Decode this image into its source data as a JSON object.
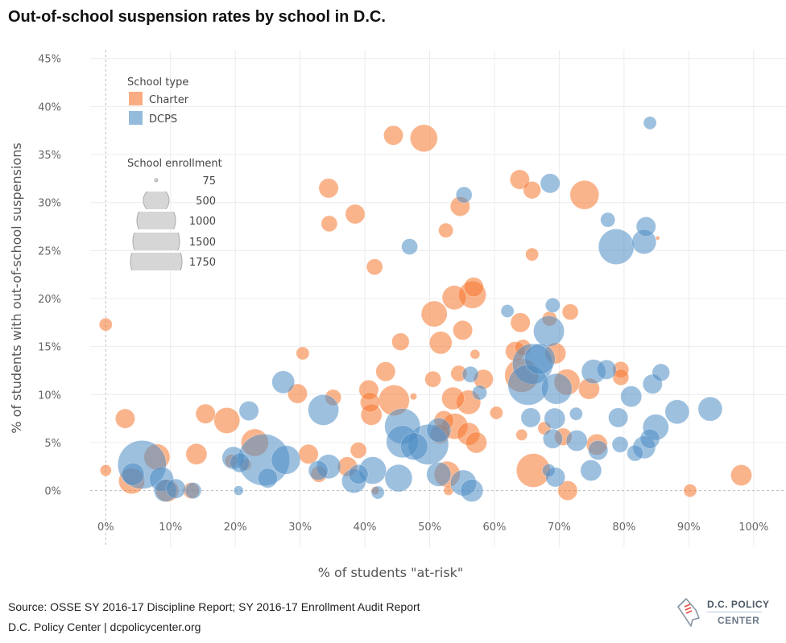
{
  "title": "Out-of-school suspension rates by school in D.C.",
  "footer": {
    "source": "Source: OSSE SY 2016-17 Discipline Report; SY 2016-17 Enrollment Audit Report",
    "credit": "D.C. Policy Center  |  dcpolicycenter.org",
    "logo_line1": "D.C. POLICY",
    "logo_line2": "CENTER"
  },
  "chart_data": {
    "type": "scatter",
    "variant": "bubble",
    "xlabel": "% of students \"at-risk\"",
    "ylabel": "% of students with out-of-school suspensions",
    "xlim": [
      -2.4,
      105
    ],
    "ylim": [
      -5.9,
      45.9
    ],
    "xticks": [
      0,
      10,
      20,
      30,
      40,
      50,
      60,
      70,
      80,
      90,
      100
    ],
    "yticks": [
      0,
      5,
      10,
      15,
      20,
      25,
      30,
      35,
      40,
      45
    ],
    "xtick_labels": [
      "0%",
      "10%",
      "20%",
      "30%",
      "40%",
      "50%",
      "60%",
      "70%",
      "80%",
      "90%",
      "100%"
    ],
    "ytick_labels": [
      "0%",
      "5%",
      "10%",
      "15%",
      "20%",
      "25%",
      "30%",
      "35%",
      "40%",
      "45%"
    ],
    "grid": true,
    "legend": {
      "placement": "top-left",
      "color_title": "School type",
      "size_title": "School enrollment",
      "size_values": [
        75,
        500,
        1000,
        1500,
        1750
      ],
      "size_labels": [
        "75",
        "500",
        "1000",
        "1500",
        "1750"
      ]
    },
    "series": [
      {
        "name": "Charter",
        "color": "#f6772e",
        "points": [
          {
            "x": 0,
            "y": 17.3,
            "enrollment": 110
          },
          {
            "x": 0,
            "y": 2.1,
            "enrollment": 85
          },
          {
            "x": 3,
            "y": 7.5,
            "enrollment": 250
          },
          {
            "x": 4,
            "y": 1,
            "enrollment": 440
          },
          {
            "x": 7.9,
            "y": 3.5,
            "enrollment": 440
          },
          {
            "x": 9.5,
            "y": 0,
            "enrollment": 335
          },
          {
            "x": 13.2,
            "y": 0,
            "enrollment": 170
          },
          {
            "x": 14,
            "y": 3.8,
            "enrollment": 290
          },
          {
            "x": 15.4,
            "y": 8,
            "enrollment": 250
          },
          {
            "x": 18.7,
            "y": 7.3,
            "enrollment": 440
          },
          {
            "x": 19.4,
            "y": 3.1,
            "enrollment": 110
          },
          {
            "x": 21.6,
            "y": 2.7,
            "enrollment": 85
          },
          {
            "x": 23,
            "y": 5,
            "enrollment": 490
          },
          {
            "x": 29.6,
            "y": 10.1,
            "enrollment": 250
          },
          {
            "x": 30.4,
            "y": 14.3,
            "enrollment": 110
          },
          {
            "x": 31.3,
            "y": 3.8,
            "enrollment": 250
          },
          {
            "x": 32.9,
            "y": 1.7,
            "enrollment": 170
          },
          {
            "x": 34.4,
            "y": 31.5,
            "enrollment": 250
          },
          {
            "x": 34.5,
            "y": 27.8,
            "enrollment": 170
          },
          {
            "x": 35.1,
            "y": 9.7,
            "enrollment": 170
          },
          {
            "x": 37.3,
            "y": 2.5,
            "enrollment": 250
          },
          {
            "x": 38.5,
            "y": 28.8,
            "enrollment": 250
          },
          {
            "x": 39,
            "y": 4.2,
            "enrollment": 170
          },
          {
            "x": 40.6,
            "y": 10.5,
            "enrollment": 250
          },
          {
            "x": 40.8,
            "y": 9.2,
            "enrollment": 250
          },
          {
            "x": 41,
            "y": 7.9,
            "enrollment": 290
          },
          {
            "x": 43.2,
            "y": 12.4,
            "enrollment": 250
          },
          {
            "x": 44.4,
            "y": 37,
            "enrollment": 250
          },
          {
            "x": 44.5,
            "y": 9.4,
            "enrollment": 620
          },
          {
            "x": 41.6,
            "y": 0,
            "enrollment": 45
          },
          {
            "x": 41.5,
            "y": 23.3,
            "enrollment": 170
          },
          {
            "x": 45.5,
            "y": 15.5,
            "enrollment": 200
          },
          {
            "x": 47.5,
            "y": 9.8,
            "enrollment": 30
          },
          {
            "x": 49.1,
            "y": 36.7,
            "enrollment": 490
          },
          {
            "x": 50.7,
            "y": 18.4,
            "enrollment": 440
          },
          {
            "x": 51.7,
            "y": 15.4,
            "enrollment": 335
          },
          {
            "x": 52.5,
            "y": 27.1,
            "enrollment": 140
          },
          {
            "x": 54.7,
            "y": 29.6,
            "enrollment": 250
          },
          {
            "x": 53.8,
            "y": 20.1,
            "enrollment": 385
          },
          {
            "x": 56.6,
            "y": 20.4,
            "enrollment": 490
          },
          {
            "x": 56.8,
            "y": 21.2,
            "enrollment": 250
          },
          {
            "x": 55.1,
            "y": 16.7,
            "enrollment": 250
          },
          {
            "x": 50.5,
            "y": 11.6,
            "enrollment": 170
          },
          {
            "x": 54.5,
            "y": 12.2,
            "enrollment": 170
          },
          {
            "x": 58.3,
            "y": 11.6,
            "enrollment": 250
          },
          {
            "x": 57,
            "y": 14.2,
            "enrollment": 60
          },
          {
            "x": 53.6,
            "y": 9.6,
            "enrollment": 335
          },
          {
            "x": 56,
            "y": 9.2,
            "enrollment": 385
          },
          {
            "x": 52.2,
            "y": 7.3,
            "enrollment": 250
          },
          {
            "x": 53.9,
            "y": 6.7,
            "enrollment": 440
          },
          {
            "x": 51.6,
            "y": 5.9,
            "enrollment": 250
          },
          {
            "x": 56,
            "y": 5.9,
            "enrollment": 335
          },
          {
            "x": 57.2,
            "y": 5,
            "enrollment": 290
          },
          {
            "x": 52.7,
            "y": 1.7,
            "enrollment": 440
          },
          {
            "x": 52.9,
            "y": 0,
            "enrollment": 60
          },
          {
            "x": 60.3,
            "y": 8.1,
            "enrollment": 110
          },
          {
            "x": 63.9,
            "y": 32.4,
            "enrollment": 250
          },
          {
            "x": 64,
            "y": 17.5,
            "enrollment": 250
          },
          {
            "x": 63.2,
            "y": 14.5,
            "enrollment": 250
          },
          {
            "x": 64.2,
            "y": 12,
            "enrollment": 750
          },
          {
            "x": 64.4,
            "y": 14.9,
            "enrollment": 170
          },
          {
            "x": 64.2,
            "y": 5.8,
            "enrollment": 85
          },
          {
            "x": 65.8,
            "y": 31.3,
            "enrollment": 200
          },
          {
            "x": 65.8,
            "y": 24.6,
            "enrollment": 110
          },
          {
            "x": 66,
            "y": 2.1,
            "enrollment": 750
          },
          {
            "x": 68.5,
            "y": 17.9,
            "enrollment": 140
          },
          {
            "x": 69.4,
            "y": 14.3,
            "enrollment": 290
          },
          {
            "x": 67.7,
            "y": 6.5,
            "enrollment": 110
          },
          {
            "x": 70.6,
            "y": 5.6,
            "enrollment": 200
          },
          {
            "x": 71.3,
            "y": 0,
            "enrollment": 250
          },
          {
            "x": 71.2,
            "y": 11.3,
            "enrollment": 440
          },
          {
            "x": 71.7,
            "y": 18.6,
            "enrollment": 170
          },
          {
            "x": 73.9,
            "y": 30.8,
            "enrollment": 550
          },
          {
            "x": 74.6,
            "y": 10.6,
            "enrollment": 290
          },
          {
            "x": 75.8,
            "y": 4.8,
            "enrollment": 290
          },
          {
            "x": 79.5,
            "y": 12.6,
            "enrollment": 170
          },
          {
            "x": 79.5,
            "y": 11.8,
            "enrollment": 170
          },
          {
            "x": 90.2,
            "y": 0,
            "enrollment": 110
          },
          {
            "x": 98.1,
            "y": 1.6,
            "enrollment": 290
          },
          {
            "x": 85.2,
            "y": 26.3,
            "enrollment": 10
          }
        ]
      },
      {
        "name": "DCPS",
        "color": "#4d8cc4",
        "points": [
          {
            "x": 5.6,
            "y": 2.7,
            "enrollment": 1540
          },
          {
            "x": 4.2,
            "y": 1.7,
            "enrollment": 335
          },
          {
            "x": 8.6,
            "y": 1.2,
            "enrollment": 385
          },
          {
            "x": 9.2,
            "y": 0,
            "enrollment": 335
          },
          {
            "x": 10.8,
            "y": 0.2,
            "enrollment": 250
          },
          {
            "x": 13.5,
            "y": 0,
            "enrollment": 170
          },
          {
            "x": 20.5,
            "y": 0,
            "enrollment": 60
          },
          {
            "x": 19.7,
            "y": 3.4,
            "enrollment": 335
          },
          {
            "x": 22.1,
            "y": 8.3,
            "enrollment": 250
          },
          {
            "x": 20.7,
            "y": 2.9,
            "enrollment": 250
          },
          {
            "x": 24.4,
            "y": 3.2,
            "enrollment": 1750
          },
          {
            "x": 25,
            "y": 1.3,
            "enrollment": 250
          },
          {
            "x": 27.8,
            "y": 3.2,
            "enrollment": 550
          },
          {
            "x": 27.4,
            "y": 11.3,
            "enrollment": 335
          },
          {
            "x": 32.8,
            "y": 2.1,
            "enrollment": 250
          },
          {
            "x": 33.6,
            "y": 8.4,
            "enrollment": 620
          },
          {
            "x": 34.4,
            "y": 2.5,
            "enrollment": 385
          },
          {
            "x": 38.3,
            "y": 1,
            "enrollment": 385
          },
          {
            "x": 39,
            "y": 1.7,
            "enrollment": 250
          },
          {
            "x": 41.2,
            "y": 2.1,
            "enrollment": 490
          },
          {
            "x": 42,
            "y": -0.2,
            "enrollment": 110
          },
          {
            "x": 45.2,
            "y": 1.3,
            "enrollment": 490
          },
          {
            "x": 45.8,
            "y": 6.7,
            "enrollment": 830
          },
          {
            "x": 45.8,
            "y": 5.1,
            "enrollment": 683
          },
          {
            "x": 47.6,
            "y": 4.6,
            "enrollment": 490
          },
          {
            "x": 49.8,
            "y": 4.8,
            "enrollment": 1070
          },
          {
            "x": 51.4,
            "y": 6.3,
            "enrollment": 385
          },
          {
            "x": 51.4,
            "y": 1.7,
            "enrollment": 385
          },
          {
            "x": 56.3,
            "y": 12.1,
            "enrollment": 170
          },
          {
            "x": 56.5,
            "y": 0,
            "enrollment": 335
          },
          {
            "x": 55.2,
            "y": 0.8,
            "enrollment": 440
          },
          {
            "x": 57.7,
            "y": 10.2,
            "enrollment": 140
          },
          {
            "x": 46.9,
            "y": 25.4,
            "enrollment": 170
          },
          {
            "x": 55.3,
            "y": 30.8,
            "enrollment": 170
          },
          {
            "x": 62,
            "y": 18.7,
            "enrollment": 110
          },
          {
            "x": 68.6,
            "y": 32,
            "enrollment": 250
          },
          {
            "x": 69,
            "y": 19.3,
            "enrollment": 140
          },
          {
            "x": 68.4,
            "y": 16.6,
            "enrollment": 620
          },
          {
            "x": 67,
            "y": 13.7,
            "enrollment": 620
          },
          {
            "x": 65.9,
            "y": 13.2,
            "enrollment": 1070
          },
          {
            "x": 65.2,
            "y": 11,
            "enrollment": 1070
          },
          {
            "x": 69.6,
            "y": 10.6,
            "enrollment": 620
          },
          {
            "x": 69.3,
            "y": 7.5,
            "enrollment": 290
          },
          {
            "x": 65.6,
            "y": 7.6,
            "enrollment": 250
          },
          {
            "x": 69,
            "y": 5.4,
            "enrollment": 250
          },
          {
            "x": 72.6,
            "y": 8,
            "enrollment": 110
          },
          {
            "x": 72.7,
            "y": 5.2,
            "enrollment": 290
          },
          {
            "x": 68.4,
            "y": 2.1,
            "enrollment": 110
          },
          {
            "x": 69.4,
            "y": 1.4,
            "enrollment": 250
          },
          {
            "x": 74.9,
            "y": 2.1,
            "enrollment": 290
          },
          {
            "x": 75.3,
            "y": 12.4,
            "enrollment": 385
          },
          {
            "x": 77.3,
            "y": 12.6,
            "enrollment": 250
          },
          {
            "x": 76,
            "y": 4.2,
            "enrollment": 250
          },
          {
            "x": 77.5,
            "y": 28.2,
            "enrollment": 140
          },
          {
            "x": 78.8,
            "y": 25.4,
            "enrollment": 830
          },
          {
            "x": 79.1,
            "y": 7.6,
            "enrollment": 250
          },
          {
            "x": 79.4,
            "y": 4.8,
            "enrollment": 170
          },
          {
            "x": 81.1,
            "y": 9.8,
            "enrollment": 290
          },
          {
            "x": 81.7,
            "y": 3.9,
            "enrollment": 170
          },
          {
            "x": 83.1,
            "y": 4.5,
            "enrollment": 335
          },
          {
            "x": 83.4,
            "y": 27.5,
            "enrollment": 250
          },
          {
            "x": 83.1,
            "y": 25.9,
            "enrollment": 385
          },
          {
            "x": 84,
            "y": 38.3,
            "enrollment": 110
          },
          {
            "x": 84.4,
            "y": 11.1,
            "enrollment": 250
          },
          {
            "x": 84,
            "y": 5.4,
            "enrollment": 250
          },
          {
            "x": 84.9,
            "y": 6.6,
            "enrollment": 440
          },
          {
            "x": 85.7,
            "y": 12.3,
            "enrollment": 200
          },
          {
            "x": 88.2,
            "y": 8.2,
            "enrollment": 385
          },
          {
            "x": 93.3,
            "y": 8.5,
            "enrollment": 385
          }
        ]
      }
    ]
  }
}
